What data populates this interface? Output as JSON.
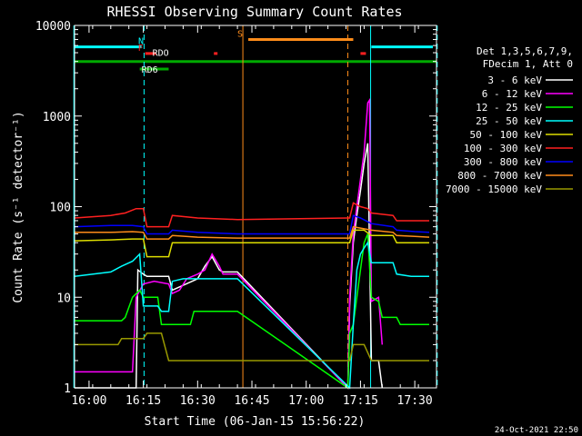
{
  "chart_data": {
    "type": "line",
    "title": "RHESSI Observing Summary Count Rates",
    "xlabel": "Start Time (06-Jan-15 15:56:22)",
    "ylabel": "Count Rate (s⁻¹ detector⁻¹)",
    "y_scale": "log",
    "ylim": [
      1,
      10000
    ],
    "xlim_minutes": [
      -4,
      34
    ],
    "x_tick_labels": [
      "16:00",
      "16:15",
      "16:30",
      "16:45",
      "17:00",
      "17:15",
      "17:30"
    ],
    "x_tick_minutes": [
      0,
      15,
      30,
      45,
      60,
      75,
      90
    ],
    "y_tick_labels": [
      "1",
      "10",
      "100",
      "1000",
      "10000"
    ],
    "y_tick_values": [
      1,
      10,
      100,
      1000,
      10000
    ],
    "legend_position": "right",
    "legend_header": [
      "Det 1,3,5,6,7,9,",
      "FDecim 1, Att 0"
    ],
    "footer_date": "24-Oct-2021 22:50",
    "flags": [
      {
        "label": "N",
        "color": "#00ffff",
        "segments": [
          [
            -4,
            14.5
          ],
          [
            78,
            95
          ]
        ],
        "level": 5800
      },
      {
        "label": "F",
        "color": "#ff2020",
        "segments": [
          [
            15.5,
            18.5
          ]
        ],
        "level": 4900
      },
      {
        "label": "RDO",
        "color": "#ffffff",
        "segments": [],
        "level": 4300
      },
      {
        "label": "",
        "color": "#00aa00",
        "segments": [
          [
            -4,
            96
          ]
        ],
        "level": 4000
      },
      {
        "label": "RD6",
        "color": "#00aa00",
        "segments": [
          [
            14,
            22
          ]
        ],
        "level": 3300
      },
      {
        "label": "S",
        "color": "#ff8c1a",
        "segments": [
          [
            44,
            73
          ]
        ],
        "level": 7000
      },
      {
        "label": "",
        "color": "#ff2020",
        "segments": [
          [
            34.5,
            35.5
          ],
          [
            75,
            76.5
          ]
        ],
        "level": 4900
      }
    ],
    "vertical_lines": [
      {
        "minutes": -4.2,
        "color": "#00ffff",
        "style": "solid"
      },
      {
        "minutes": 15.2,
        "color": "#00ffff",
        "style": "dashed"
      },
      {
        "minutes": 42.5,
        "color": "#ff8c1a",
        "style": "solid"
      },
      {
        "minutes": 71.5,
        "color": "#ff8c1a",
        "style": "dashed"
      },
      {
        "minutes": 77.8,
        "color": "#00ffff",
        "style": "solid"
      },
      {
        "minutes": 96.2,
        "color": "#00ffff",
        "style": "dashed"
      }
    ],
    "series": [
      {
        "name": "3 - 6 keV",
        "color": "#ffffff",
        "points": [
          [
            -4,
            1
          ],
          [
            13,
            1
          ],
          [
            13.5,
            20
          ],
          [
            15,
            18
          ],
          [
            16,
            17
          ],
          [
            22,
            17
          ],
          [
            23,
            12
          ],
          [
            30,
            16
          ],
          [
            32,
            22
          ],
          [
            34,
            28
          ],
          [
            36,
            20
          ],
          [
            37,
            19
          ],
          [
            41,
            19
          ],
          [
            71.5,
            1
          ],
          [
            72,
            8
          ],
          [
            73,
            40
          ],
          [
            74,
            80
          ],
          [
            75,
            150
          ],
          [
            76,
            300
          ],
          [
            77,
            500
          ],
          [
            78,
            2
          ],
          [
            80,
            2
          ],
          [
            81,
            1
          ]
        ]
      },
      {
        "name": "6 - 12 keV",
        "color": "#ff00ff",
        "points": [
          [
            -4,
            1.5
          ],
          [
            12,
            1.5
          ],
          [
            13,
            10
          ],
          [
            15,
            14
          ],
          [
            18,
            15
          ],
          [
            22,
            14
          ],
          [
            23,
            11
          ],
          [
            25,
            12
          ],
          [
            27,
            16
          ],
          [
            30,
            18
          ],
          [
            32,
            20
          ],
          [
            34,
            30
          ],
          [
            36,
            22
          ],
          [
            37,
            18
          ],
          [
            41,
            18
          ],
          [
            71.5,
            1
          ],
          [
            72,
            10
          ],
          [
            73,
            50
          ],
          [
            74,
            100
          ],
          [
            75,
            200
          ],
          [
            76,
            400
          ],
          [
            77,
            1400
          ],
          [
            77.5,
            1500
          ],
          [
            78,
            9
          ],
          [
            80,
            10
          ],
          [
            81,
            3
          ]
        ]
      },
      {
        "name": "12 - 25 keV",
        "color": "#00ff00",
        "points": [
          [
            -4,
            5.5
          ],
          [
            9,
            5.5
          ],
          [
            10,
            6
          ],
          [
            12,
            10
          ],
          [
            14,
            12
          ],
          [
            15,
            10
          ],
          [
            19,
            10
          ],
          [
            20,
            5
          ],
          [
            28,
            5
          ],
          [
            29,
            7
          ],
          [
            41,
            7
          ],
          [
            71.5,
            1
          ],
          [
            72,
            4
          ],
          [
            73,
            5
          ],
          [
            74,
            10
          ],
          [
            75,
            20
          ],
          [
            76,
            40
          ],
          [
            77,
            50
          ],
          [
            78,
            10
          ],
          [
            80,
            9
          ],
          [
            81,
            6
          ],
          [
            85,
            6
          ],
          [
            86,
            5
          ],
          [
            94,
            5
          ]
        ]
      },
      {
        "name": "25 - 50 keV",
        "color": "#00ffff",
        "points": [
          [
            -4,
            17
          ],
          [
            6,
            19
          ],
          [
            9,
            22
          ],
          [
            12,
            25
          ],
          [
            14,
            30
          ],
          [
            15,
            8
          ],
          [
            18,
            8
          ],
          [
            19,
            8
          ],
          [
            20,
            7
          ],
          [
            22,
            7
          ],
          [
            23,
            15
          ],
          [
            26,
            16
          ],
          [
            41,
            16
          ],
          [
            72,
            1
          ],
          [
            73,
            5
          ],
          [
            74,
            20
          ],
          [
            75,
            30
          ],
          [
            76,
            35
          ],
          [
            77,
            40
          ],
          [
            78,
            24
          ],
          [
            84,
            24
          ],
          [
            85,
            18
          ],
          [
            89,
            17
          ],
          [
            94,
            17
          ]
        ]
      },
      {
        "name": "50 - 100 keV",
        "color": "#dddd00",
        "points": [
          [
            -4,
            42
          ],
          [
            6,
            43
          ],
          [
            12,
            44
          ],
          [
            15,
            44
          ],
          [
            16,
            28
          ],
          [
            22,
            28
          ],
          [
            23,
            40
          ],
          [
            30,
            40
          ],
          [
            41,
            40
          ],
          [
            72,
            40
          ],
          [
            73,
            55
          ],
          [
            76,
            55
          ],
          [
            78,
            48
          ],
          [
            84,
            48
          ],
          [
            85,
            40
          ],
          [
            90,
            40
          ],
          [
            94,
            40
          ]
        ]
      },
      {
        "name": "100 - 300 keV",
        "color": "#ff2020",
        "points": [
          [
            -4,
            75
          ],
          [
            6,
            80
          ],
          [
            10,
            85
          ],
          [
            13,
            95
          ],
          [
            15,
            95
          ],
          [
            16,
            60
          ],
          [
            22,
            60
          ],
          [
            23,
            80
          ],
          [
            30,
            75
          ],
          [
            41,
            72
          ],
          [
            72,
            75
          ],
          [
            73,
            110
          ],
          [
            75,
            100
          ],
          [
            77,
            95
          ],
          [
            78,
            85
          ],
          [
            84,
            80
          ],
          [
            85,
            70
          ],
          [
            90,
            70
          ],
          [
            94,
            70
          ]
        ]
      },
      {
        "name": "300 - 800 keV",
        "color": "#0000ff",
        "points": [
          [
            -4,
            60
          ],
          [
            6,
            62
          ],
          [
            12,
            62
          ],
          [
            15,
            60
          ],
          [
            16,
            50
          ],
          [
            22,
            50
          ],
          [
            23,
            55
          ],
          [
            30,
            52
          ],
          [
            41,
            50
          ],
          [
            72,
            50
          ],
          [
            73,
            80
          ],
          [
            75,
            75
          ],
          [
            78,
            65
          ],
          [
            84,
            60
          ],
          [
            85,
            55
          ],
          [
            90,
            53
          ],
          [
            94,
            52
          ]
        ]
      },
      {
        "name": "800 - 7000 keV",
        "color": "#ff8c1a",
        "points": [
          [
            -4,
            52
          ],
          [
            6,
            52
          ],
          [
            12,
            53
          ],
          [
            15,
            52
          ],
          [
            16,
            44
          ],
          [
            22,
            44
          ],
          [
            23,
            48
          ],
          [
            30,
            46
          ],
          [
            41,
            45
          ],
          [
            72,
            45
          ],
          [
            73,
            60
          ],
          [
            75,
            58
          ],
          [
            78,
            55
          ],
          [
            84,
            52
          ],
          [
            85,
            48
          ],
          [
            90,
            47
          ],
          [
            94,
            46
          ]
        ]
      },
      {
        "name": "7000 - 15000 keV",
        "color": "#999900",
        "points": [
          [
            -4,
            3
          ],
          [
            8,
            3
          ],
          [
            9,
            3.5
          ],
          [
            15,
            3.5
          ],
          [
            16,
            4
          ],
          [
            20,
            4
          ],
          [
            22,
            2
          ],
          [
            41,
            2
          ],
          [
            72,
            2
          ],
          [
            73,
            3
          ],
          [
            76,
            3
          ],
          [
            78,
            2
          ],
          [
            94,
            2
          ]
        ]
      }
    ]
  }
}
